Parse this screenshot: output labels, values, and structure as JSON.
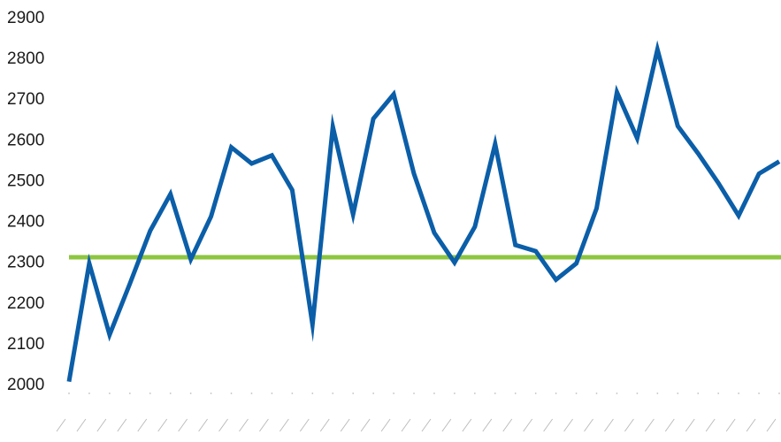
{
  "chart_data": {
    "type": "line",
    "title": "",
    "xlabel": "",
    "ylabel": "",
    "ylim": [
      2000,
      2900
    ],
    "yticks": [
      2000,
      2100,
      2200,
      2300,
      2400,
      2500,
      2600,
      2700,
      2800,
      2900
    ],
    "grid": false,
    "legend": "none",
    "x_tick_labels": "illegible",
    "series": [
      {
        "color": "#0b5ea8",
        "values": [
          2005,
          2295,
          2120,
          2245,
          2375,
          2465,
          2305,
          2410,
          2580,
          2540,
          2560,
          2475,
          2145,
          2630,
          2415,
          2650,
          2710,
          2515,
          2370,
          2297,
          2385,
          2588,
          2340,
          2325,
          2255,
          2295,
          2430,
          2715,
          2602,
          2820,
          2632,
          2565,
          2492,
          2412,
          2515,
          2545
        ]
      }
    ],
    "reference_lines": [
      {
        "value": 2310,
        "color": "#8dc63f"
      }
    ]
  }
}
